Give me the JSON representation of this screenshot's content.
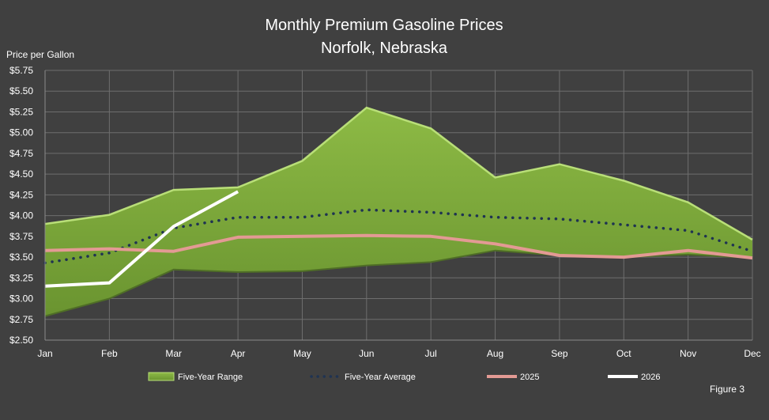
{
  "chart_data": {
    "type": "line",
    "title": "Monthly Premium Gasoline Prices",
    "subtitle": "Norfolk, Nebraska",
    "ylabel": "Price per Gallon",
    "xlabel": "",
    "categories": [
      "Jan",
      "Feb",
      "Mar",
      "Apr",
      "May",
      "Jun",
      "Jul",
      "Aug",
      "Sep",
      "Oct",
      "Nov",
      "Dec"
    ],
    "ylim": [
      2.5,
      5.75
    ],
    "yticks": [
      "$2.50",
      "$2.75",
      "$3.00",
      "$3.25",
      "$3.50",
      "$3.75",
      "$4.00",
      "$4.25",
      "$4.50",
      "$4.75",
      "$5.00",
      "$5.25",
      "$5.50",
      "$5.75"
    ],
    "grid": true,
    "legend_position": "bottom",
    "range": {
      "name": "Five-Year Range",
      "low": [
        2.79,
        3.0,
        3.35,
        3.32,
        3.33,
        3.4,
        3.44,
        3.58,
        3.52,
        3.5,
        3.53,
        3.49
      ],
      "high": [
        3.9,
        4.01,
        4.31,
        4.34,
        4.66,
        5.3,
        5.05,
        4.46,
        4.62,
        4.42,
        4.16,
        3.71
      ],
      "color": "#7da83a"
    },
    "series": [
      {
        "name": "Five-Year Average",
        "values": [
          3.43,
          3.55,
          3.85,
          3.98,
          3.98,
          4.07,
          4.04,
          3.98,
          3.96,
          3.89,
          3.82,
          3.57
        ],
        "color": "#1f3352",
        "style": "dotted"
      },
      {
        "name": "2025",
        "values": [
          3.58,
          3.6,
          3.57,
          3.74,
          3.75,
          3.76,
          3.75,
          3.66,
          3.52,
          3.5,
          3.58,
          3.49
        ],
        "color": "#e39a94",
        "style": "solid"
      },
      {
        "name": "2026",
        "values": [
          3.15,
          3.19,
          3.87,
          4.29,
          null,
          null,
          null,
          null,
          null,
          null,
          null,
          null
        ],
        "color": "#ffffff",
        "style": "solid"
      }
    ],
    "annotation": "Figure 3"
  }
}
